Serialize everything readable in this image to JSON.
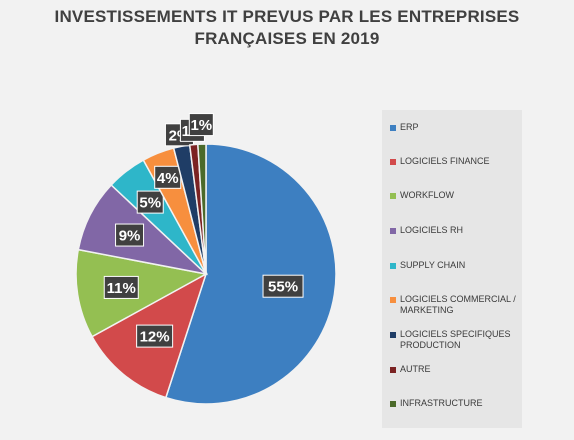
{
  "chart_data": {
    "type": "pie",
    "title_lines": [
      "INVESTISSEMENTS IT PREVUS PAR LES ENTREPRISES",
      "FRANÇAISES EN 2019"
    ],
    "categories": [
      "ERP",
      "LOGICIELS FINANCE",
      "WORKFLOW",
      "LOGICIELS RH",
      "SUPPLY CHAIN",
      "LOGICIELS COMMERCIAL / MARKETING",
      "LOGICIELS SPECIFIQUES PRODUCTION",
      "AUTRE",
      "INFRASTRUCTURE"
    ],
    "values": [
      55,
      12,
      11,
      9,
      5,
      4,
      2,
      1,
      1
    ],
    "data_labels": [
      "55%",
      "12%",
      "11%",
      "9%",
      "5%",
      "4%",
      "2%",
      "1%",
      "1%"
    ],
    "colors": [
      "#3d7fc1",
      "#d24a4b",
      "#94bf52",
      "#8167a6",
      "#2eb6c9",
      "#f78f3e",
      "#1f3d66",
      "#7b2323",
      "#4b6a2a"
    ],
    "legend_position": "right",
    "legend_marker_colors": [
      "#3d7fc1",
      "#d24a4b",
      "#94bf52",
      "#8167a6",
      "#2eb6c9",
      "#f78f3e",
      "#1f3d66",
      "#7b2323",
      "#4b6a2a"
    ]
  }
}
